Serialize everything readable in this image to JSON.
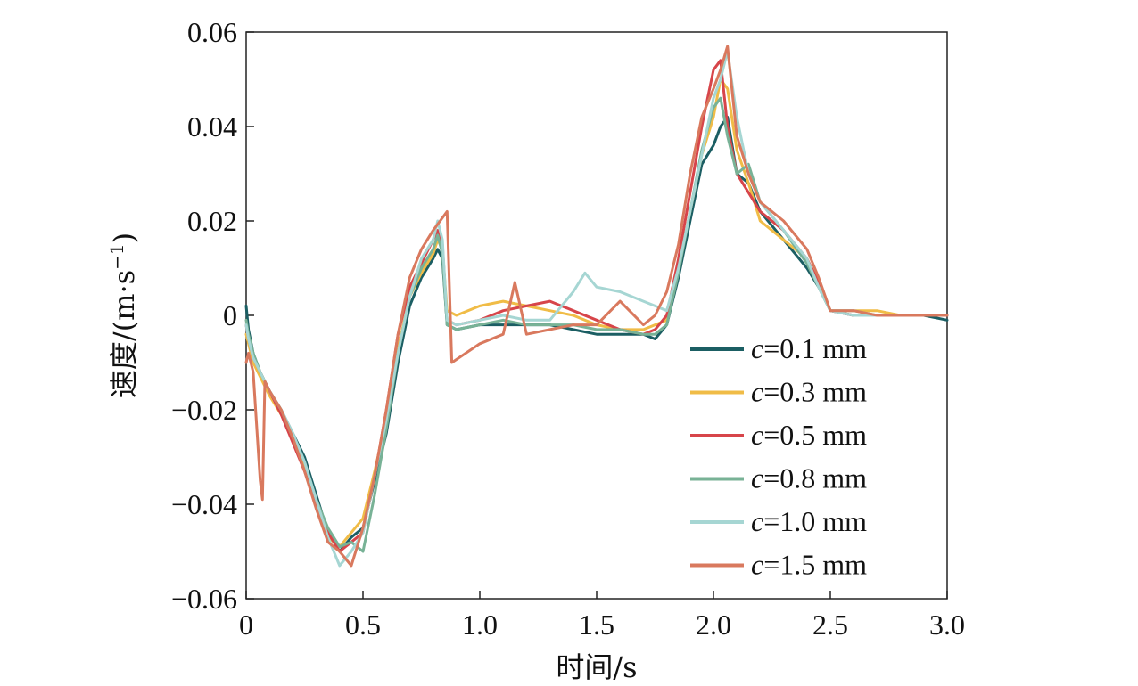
{
  "chart_data": {
    "type": "line",
    "xlabel": "时间/s",
    "ylabel": "速度/(m·s",
    "ylabel_sup": "−1",
    "ylabel_close": ")",
    "xlim": [
      0,
      3.0
    ],
    "ylim": [
      -0.06,
      0.06
    ],
    "x_ticks": [
      0,
      0.5,
      1.0,
      1.5,
      2.0,
      2.5,
      3.0
    ],
    "x_tick_labels": [
      "0",
      "0.5",
      "1.0",
      "1.5",
      "2.0",
      "2.5",
      "3.0"
    ],
    "y_ticks": [
      -0.06,
      -0.04,
      -0.02,
      0,
      0.02,
      0.04,
      0.06
    ],
    "y_tick_labels": [
      "−0.06",
      "−0.04",
      "−0.02",
      "0",
      "0.02",
      "0.04",
      "0.06"
    ],
    "grid": false,
    "legend_position": "right-middle",
    "series": [
      {
        "name": "c=0.1 mm",
        "var": "c",
        "value_text": "=0.1 mm",
        "color": "#1b5e63",
        "x": [
          0,
          0.01,
          0.03,
          0.06,
          0.1,
          0.15,
          0.2,
          0.25,
          0.3,
          0.35,
          0.4,
          0.45,
          0.5,
          0.55,
          0.6,
          0.65,
          0.7,
          0.75,
          0.8,
          0.82,
          0.84,
          0.86,
          0.9,
          1.0,
          1.1,
          1.2,
          1.3,
          1.4,
          1.5,
          1.6,
          1.7,
          1.75,
          1.8,
          1.85,
          1.9,
          1.95,
          2.0,
          2.03,
          2.06,
          2.1,
          2.15,
          2.2,
          2.3,
          2.4,
          2.45,
          2.5,
          2.6,
          2.7,
          2.8,
          2.9,
          3.0
        ],
        "y": [
          0.002,
          -0.003,
          -0.008,
          -0.012,
          -0.016,
          -0.02,
          -0.025,
          -0.03,
          -0.038,
          -0.046,
          -0.05,
          -0.047,
          -0.045,
          -0.035,
          -0.025,
          -0.01,
          0.002,
          0.008,
          0.012,
          0.014,
          0.012,
          -0.002,
          -0.003,
          -0.002,
          -0.002,
          -0.002,
          -0.002,
          -0.003,
          -0.004,
          -0.004,
          -0.004,
          -0.005,
          -0.002,
          0.008,
          0.02,
          0.032,
          0.036,
          0.04,
          0.042,
          0.03,
          0.028,
          0.022,
          0.016,
          0.01,
          0.006,
          0.001,
          0.0,
          0.0,
          0.0,
          0.0,
          -0.001
        ]
      },
      {
        "name": "c=0.3 mm",
        "var": "c",
        "value_text": "=0.3 mm",
        "color": "#f0bc47",
        "x": [
          0,
          0.01,
          0.03,
          0.06,
          0.1,
          0.15,
          0.2,
          0.25,
          0.3,
          0.35,
          0.4,
          0.45,
          0.5,
          0.55,
          0.6,
          0.65,
          0.7,
          0.75,
          0.8,
          0.82,
          0.84,
          0.86,
          0.9,
          1.0,
          1.1,
          1.2,
          1.3,
          1.4,
          1.5,
          1.6,
          1.7,
          1.75,
          1.8,
          1.85,
          1.9,
          1.95,
          2.0,
          2.03,
          2.06,
          2.1,
          2.15,
          2.2,
          2.3,
          2.4,
          2.45,
          2.5,
          2.6,
          2.7,
          2.8,
          2.9,
          3.0
        ],
        "y": [
          -0.004,
          -0.006,
          -0.01,
          -0.013,
          -0.017,
          -0.021,
          -0.026,
          -0.032,
          -0.04,
          -0.047,
          -0.049,
          -0.046,
          -0.043,
          -0.033,
          -0.022,
          -0.007,
          0.004,
          0.009,
          0.013,
          0.016,
          0.014,
          0.001,
          0.0,
          0.002,
          0.003,
          0.002,
          0.001,
          0.0,
          -0.002,
          -0.003,
          -0.003,
          -0.002,
          -0.001,
          0.01,
          0.022,
          0.034,
          0.042,
          0.05,
          0.048,
          0.035,
          0.028,
          0.02,
          0.016,
          0.012,
          0.007,
          0.001,
          0.001,
          0.001,
          0.0,
          0.0,
          0.0
        ]
      },
      {
        "name": "c=0.5 mm",
        "var": "c",
        "value_text": "=0.5 mm",
        "color": "#d7454a",
        "x": [
          0,
          0.01,
          0.03,
          0.06,
          0.1,
          0.15,
          0.2,
          0.25,
          0.3,
          0.35,
          0.4,
          0.45,
          0.5,
          0.55,
          0.6,
          0.65,
          0.7,
          0.75,
          0.8,
          0.82,
          0.84,
          0.86,
          0.9,
          1.0,
          1.1,
          1.2,
          1.3,
          1.4,
          1.5,
          1.6,
          1.7,
          1.75,
          1.8,
          1.85,
          1.9,
          1.95,
          2.0,
          2.03,
          2.06,
          2.1,
          2.15,
          2.2,
          2.3,
          2.4,
          2.45,
          2.5,
          2.6,
          2.7,
          2.8,
          2.9,
          3.0
        ],
        "y": [
          -0.002,
          -0.005,
          -0.009,
          -0.012,
          -0.016,
          -0.021,
          -0.027,
          -0.033,
          -0.04,
          -0.046,
          -0.05,
          -0.048,
          -0.046,
          -0.034,
          -0.02,
          -0.004,
          0.006,
          0.011,
          0.016,
          0.018,
          0.015,
          -0.001,
          -0.002,
          -0.001,
          0.001,
          0.002,
          0.003,
          0.001,
          -0.001,
          -0.003,
          -0.004,
          -0.003,
          0.0,
          0.012,
          0.026,
          0.04,
          0.052,
          0.054,
          0.04,
          0.03,
          0.026,
          0.022,
          0.018,
          0.012,
          0.007,
          0.001,
          0.0,
          0.0,
          0.0,
          0.0,
          0.0
        ]
      },
      {
        "name": "c=0.8 mm",
        "var": "c",
        "value_text": "=0.8 mm",
        "color": "#78b296",
        "x": [
          0,
          0.01,
          0.03,
          0.06,
          0.1,
          0.15,
          0.2,
          0.25,
          0.3,
          0.35,
          0.4,
          0.45,
          0.5,
          0.55,
          0.6,
          0.65,
          0.7,
          0.75,
          0.8,
          0.82,
          0.84,
          0.86,
          0.9,
          1.0,
          1.1,
          1.2,
          1.3,
          1.4,
          1.5,
          1.6,
          1.7,
          1.75,
          1.8,
          1.85,
          1.9,
          1.95,
          2.0,
          2.03,
          2.06,
          2.1,
          2.15,
          2.2,
          2.3,
          2.4,
          2.45,
          2.5,
          2.6,
          2.7,
          2.8,
          2.9,
          3.0
        ],
        "y": [
          -0.001,
          -0.004,
          -0.008,
          -0.012,
          -0.016,
          -0.02,
          -0.026,
          -0.031,
          -0.039,
          -0.045,
          -0.049,
          -0.048,
          -0.05,
          -0.038,
          -0.024,
          -0.008,
          0.004,
          0.01,
          0.014,
          0.017,
          0.013,
          -0.002,
          -0.003,
          -0.002,
          -0.001,
          -0.002,
          -0.002,
          -0.002,
          -0.003,
          -0.003,
          -0.004,
          -0.004,
          -0.002,
          0.009,
          0.022,
          0.035,
          0.044,
          0.046,
          0.038,
          0.03,
          0.032,
          0.024,
          0.018,
          0.011,
          0.006,
          0.001,
          0.001,
          0.0,
          0.0,
          0.0,
          0.0
        ]
      },
      {
        "name": "c=1.0 mm",
        "var": "c",
        "value_text": "=1.0 mm",
        "color": "#a6d6d3",
        "x": [
          0,
          0.01,
          0.03,
          0.06,
          0.1,
          0.15,
          0.2,
          0.25,
          0.3,
          0.35,
          0.4,
          0.45,
          0.5,
          0.55,
          0.6,
          0.65,
          0.7,
          0.75,
          0.8,
          0.82,
          0.84,
          0.86,
          0.9,
          1.0,
          1.1,
          1.2,
          1.3,
          1.4,
          1.45,
          1.5,
          1.6,
          1.7,
          1.75,
          1.8,
          1.85,
          1.9,
          1.95,
          2.0,
          2.03,
          2.06,
          2.1,
          2.15,
          2.2,
          2.3,
          2.4,
          2.45,
          2.5,
          2.6,
          2.7,
          2.8,
          2.9,
          3.0
        ],
        "y": [
          -0.002,
          -0.005,
          -0.009,
          -0.012,
          -0.016,
          -0.02,
          -0.025,
          -0.031,
          -0.039,
          -0.047,
          -0.053,
          -0.05,
          -0.046,
          -0.034,
          -0.022,
          -0.008,
          0.004,
          0.012,
          0.016,
          0.02,
          0.016,
          -0.001,
          -0.002,
          -0.001,
          0.0,
          -0.001,
          -0.001,
          0.005,
          0.009,
          0.006,
          0.005,
          0.003,
          0.002,
          0.001,
          0.01,
          0.022,
          0.034,
          0.046,
          0.05,
          0.056,
          0.042,
          0.03,
          0.024,
          0.018,
          0.012,
          0.006,
          0.001,
          0.0,
          0.0,
          0.0,
          0.0,
          0.0
        ]
      },
      {
        "name": "c=1.5 mm",
        "var": "c",
        "value_text": "=1.5 mm",
        "color": "#d9795e",
        "x": [
          0,
          0.01,
          0.03,
          0.06,
          0.07,
          0.08,
          0.1,
          0.15,
          0.2,
          0.25,
          0.3,
          0.35,
          0.4,
          0.45,
          0.5,
          0.55,
          0.6,
          0.65,
          0.7,
          0.75,
          0.8,
          0.83,
          0.86,
          0.88,
          1.0,
          1.1,
          1.15,
          1.2,
          1.3,
          1.4,
          1.5,
          1.6,
          1.7,
          1.75,
          1.8,
          1.85,
          1.9,
          1.95,
          2.0,
          2.03,
          2.06,
          2.1,
          2.15,
          2.2,
          2.3,
          2.4,
          2.45,
          2.5,
          2.6,
          2.7,
          2.8,
          2.9,
          3.0
        ],
        "y": [
          -0.01,
          -0.008,
          -0.012,
          -0.035,
          -0.039,
          -0.014,
          -0.016,
          -0.02,
          -0.026,
          -0.033,
          -0.041,
          -0.048,
          -0.05,
          -0.053,
          -0.045,
          -0.034,
          -0.02,
          -0.004,
          0.008,
          0.014,
          0.018,
          0.02,
          0.022,
          -0.01,
          -0.006,
          -0.004,
          0.007,
          -0.004,
          -0.003,
          -0.002,
          -0.002,
          0.003,
          -0.002,
          0.0,
          0.005,
          0.015,
          0.03,
          0.042,
          0.048,
          0.052,
          0.057,
          0.038,
          0.03,
          0.024,
          0.02,
          0.014,
          0.008,
          0.001,
          0.001,
          0.0,
          0.0,
          0.0,
          0.0
        ]
      }
    ]
  }
}
